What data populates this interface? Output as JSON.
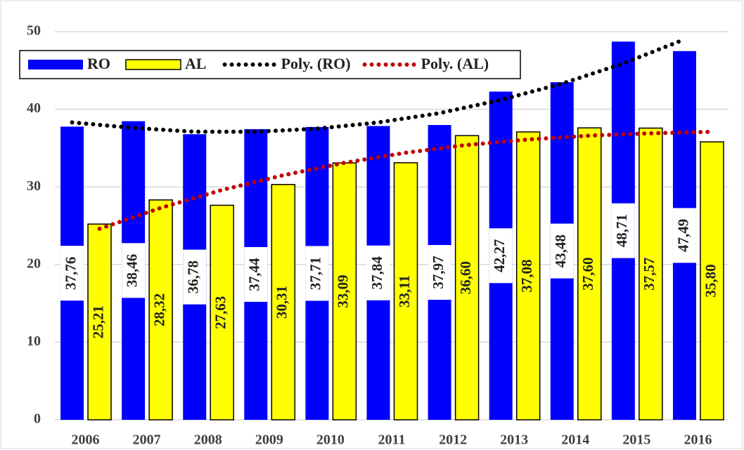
{
  "chart_data": {
    "type": "bar",
    "categories": [
      "2006",
      "2007",
      "2008",
      "2009",
      "2010",
      "2011",
      "2012",
      "2013",
      "2014",
      "2015",
      "2016"
    ],
    "series": [
      {
        "name": "RO",
        "color": "#0000ff",
        "values": [
          37.76,
          38.46,
          36.78,
          37.44,
          37.71,
          37.84,
          37.97,
          42.27,
          43.48,
          48.71,
          47.49
        ],
        "value_labels": [
          "37,76",
          "38,46",
          "36,78",
          "37,44",
          "37,71",
          "37,84",
          "37,97",
          "42,27",
          "43,48",
          "48,71",
          "47,49"
        ]
      },
      {
        "name": "AL",
        "color": "#ffff00",
        "values": [
          25.21,
          28.32,
          27.63,
          30.31,
          33.09,
          33.11,
          36.6,
          37.08,
          37.6,
          37.57,
          35.8
        ],
        "value_labels": [
          "25,21",
          "28,32",
          "27,63",
          "30,31",
          "33,09",
          "33,11",
          "36,60",
          "37,08",
          "37,60",
          "37,57",
          "35,80"
        ]
      }
    ],
    "trendlines": [
      {
        "name": "Poly. (RO)",
        "color": "#000000",
        "values": [
          38.3,
          37.6,
          37.1,
          37.1,
          37.5,
          38.3,
          39.5,
          41.2,
          43.3,
          45.9,
          49.0
        ]
      },
      {
        "name": "Poly. (AL)",
        "color": "#c00000",
        "values": [
          24.6,
          27.3,
          29.6,
          31.5,
          33.1,
          34.4,
          35.4,
          36.1,
          36.6,
          36.9,
          37.1
        ]
      }
    ],
    "ylim": [
      0,
      50
    ],
    "yticks": [
      0,
      10,
      20,
      30,
      40,
      50
    ],
    "grid": true
  }
}
